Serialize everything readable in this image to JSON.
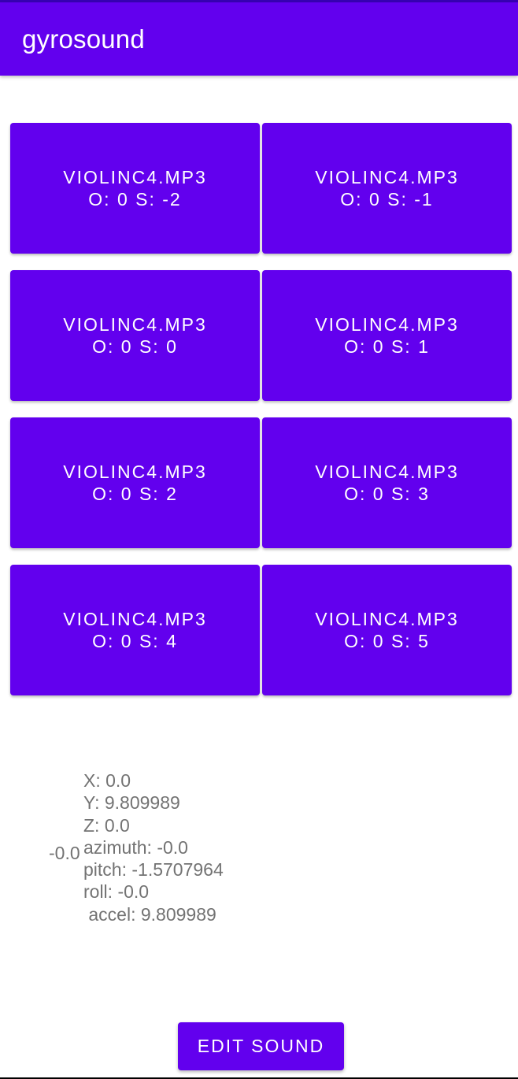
{
  "app": {
    "title": "gyrosound",
    "colors": {
      "primary": "#6200ee",
      "primary_dark": "#3700b3",
      "text_muted": "#737373"
    }
  },
  "sound_buttons": [
    {
      "file": "VIOLINC4.MP3",
      "params": "O: 0 S: -2"
    },
    {
      "file": "VIOLINC4.MP3",
      "params": "O: 0 S: -1"
    },
    {
      "file": "VIOLINC4.MP3",
      "params": "O: 0 S: 0"
    },
    {
      "file": "VIOLINC4.MP3",
      "params": "O: 0 S: 1"
    },
    {
      "file": "VIOLINC4.MP3",
      "params": "O: 0 S: 2"
    },
    {
      "file": "VIOLINC4.MP3",
      "params": "O: 0 S: 3"
    },
    {
      "file": "VIOLINC4.MP3",
      "params": "O: 0 S: 4"
    },
    {
      "file": "VIOLINC4.MP3",
      "params": "O: 0 S: 5"
    }
  ],
  "sensor": {
    "side_value": "-0.0",
    "x": "X: 0.0",
    "y": "Y: 9.809989",
    "z": "Z: 0.0",
    "azimuth": "azimuth: -0.0",
    "pitch": "pitch: -1.5707964",
    "roll": "roll: -0.0",
    "accel": " accel: 9.809989"
  },
  "footer": {
    "edit_label": "EDIT SOUND"
  }
}
